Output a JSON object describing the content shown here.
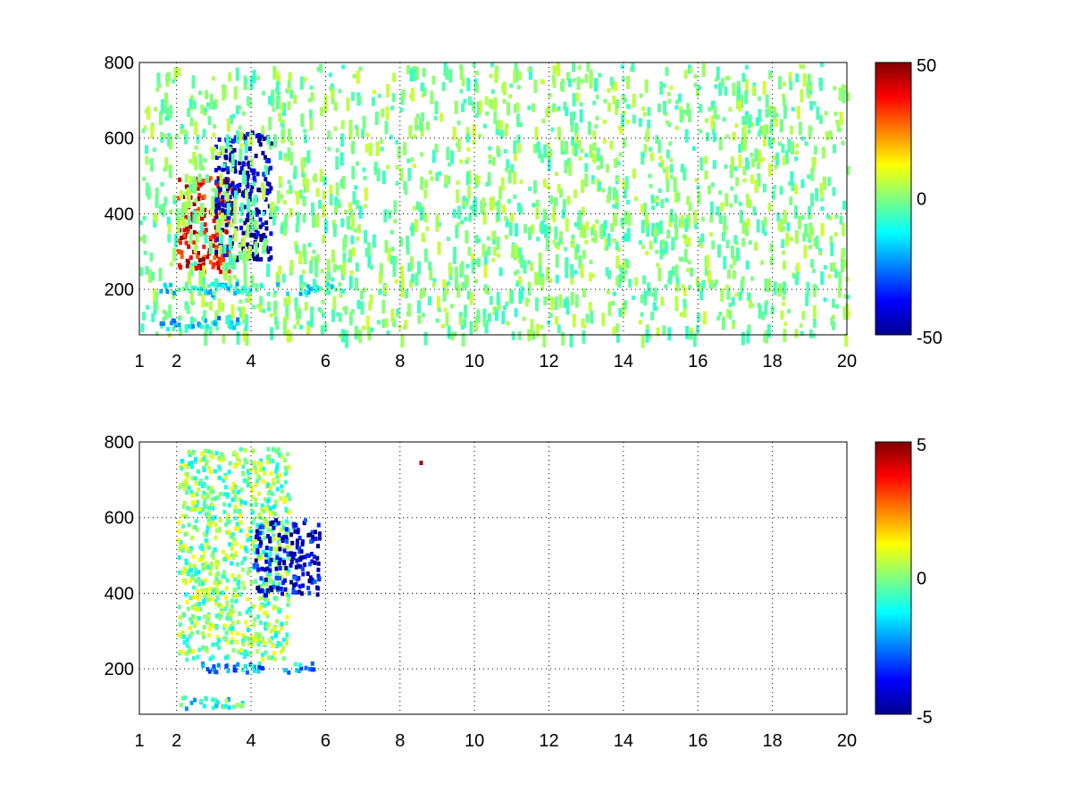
{
  "chart_data": [
    {
      "type": "heatmap",
      "title": "",
      "xlabel": "",
      "ylabel": "",
      "xlim": [
        1,
        20
      ],
      "ylim": [
        80,
        800
      ],
      "xticks": [
        "1",
        "2",
        "4",
        "6",
        "8",
        "10",
        "12",
        "14",
        "16",
        "18",
        "20"
      ],
      "yticks": [
        "200",
        "400",
        "600",
        "800"
      ],
      "grid": true,
      "colormap": "jet",
      "colorbar": {
        "min": -50,
        "max": 50,
        "ticks": [
          "-50",
          "0",
          "50"
        ]
      },
      "features": [
        {
          "description": "strong positive band along curved ridge",
          "x_range": [
            2.0,
            3.5
          ],
          "y_range": [
            250,
            500
          ],
          "value": 40
        },
        {
          "description": "strong negative band right of ridge",
          "x_range": [
            3.0,
            4.5
          ],
          "y_range": [
            280,
            620
          ],
          "value": -45
        },
        {
          "description": "near-zero speckle across all frequencies",
          "x_range": [
            1,
            20
          ],
          "y_range": [
            80,
            800
          ],
          "value": 0
        },
        {
          "description": "weak negative horizontal band",
          "x_range": [
            1.5,
            6.5
          ],
          "y_range": [
            190,
            220
          ],
          "value": -10
        },
        {
          "description": "weak negative horizontal band",
          "x_range": [
            1.5,
            4.0
          ],
          "y_range": [
            100,
            130
          ],
          "value": -15
        }
      ]
    },
    {
      "type": "heatmap",
      "title": "",
      "xlabel": "",
      "ylabel": "",
      "xlim": [
        1,
        20
      ],
      "ylim": [
        80,
        800
      ],
      "xticks": [
        "1",
        "2",
        "4",
        "6",
        "8",
        "10",
        "12",
        "14",
        "16",
        "18",
        "20"
      ],
      "yticks": [
        "200",
        "400",
        "600",
        "800"
      ],
      "grid": true,
      "colormap": "jet",
      "colorbar": {
        "min": -5,
        "max": 5,
        "ticks": [
          "-5",
          "0",
          "5"
        ]
      },
      "features": [
        {
          "description": "mixed speckle cluster",
          "x_range": [
            2.0,
            5.0
          ],
          "y_range": [
            230,
            790
          ],
          "value": 0
        },
        {
          "description": "negative edge of cluster",
          "x_range": [
            4.0,
            5.8
          ],
          "y_range": [
            400,
            600
          ],
          "value": -4
        },
        {
          "description": "weak negative horizontal band",
          "x_range": [
            2.5,
            5.8
          ],
          "y_range": [
            195,
            220
          ],
          "value": -2
        },
        {
          "description": "weak horizontal band",
          "x_range": [
            1.8,
            3.8
          ],
          "y_range": [
            100,
            130
          ],
          "value": -1
        },
        {
          "description": "isolated high values",
          "x_range": [
            8.5,
            8.6
          ],
          "y_range": [
            740,
            760
          ],
          "value": 4
        }
      ]
    }
  ]
}
